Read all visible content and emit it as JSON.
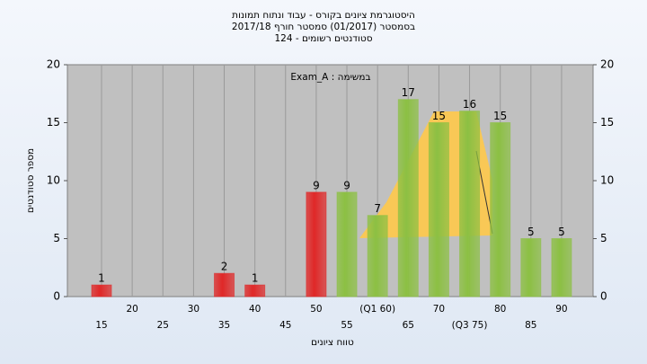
{
  "chart_data": {
    "type": "bar",
    "title": "היסטוגרמת ציונים בקורס - עבוד ונתוח תמונות",
    "subtitle": "בסמסטר  (01/2017)  סמסטר חורף 2017/18",
    "subtitle2": "סטודנטים רשומים - 124",
    "annotation": "Exam_A : במשימה",
    "x_label": "טווח ציונים",
    "y_label": "מספר סטודנטים",
    "categories": [
      "15",
      "20",
      "25",
      "30",
      "35",
      "40",
      "45",
      "50",
      "55",
      "(Q1 60)",
      "65",
      "70",
      "(Q3 75)",
      "80",
      "85",
      "90"
    ],
    "values": [
      1,
      0,
      0,
      0,
      2,
      1,
      0,
      9,
      9,
      7,
      17,
      15,
      16,
      15,
      5,
      5
    ],
    "colors": [
      "#e02828",
      "#e02828",
      "#e02828",
      "#e02828",
      "#e02828",
      "#e02828",
      "#e02828",
      "#e02828",
      "#8cc043",
      "#8cc043",
      "#8cc043",
      "#8cc043",
      "#8cc043",
      "#8cc043",
      "#8cc043",
      "#8cc043"
    ],
    "ylim": [
      0,
      20
    ],
    "yticks": [
      0,
      5,
      10,
      15,
      20
    ],
    "y2ticks": [
      0,
      5,
      10,
      15,
      20
    ]
  }
}
